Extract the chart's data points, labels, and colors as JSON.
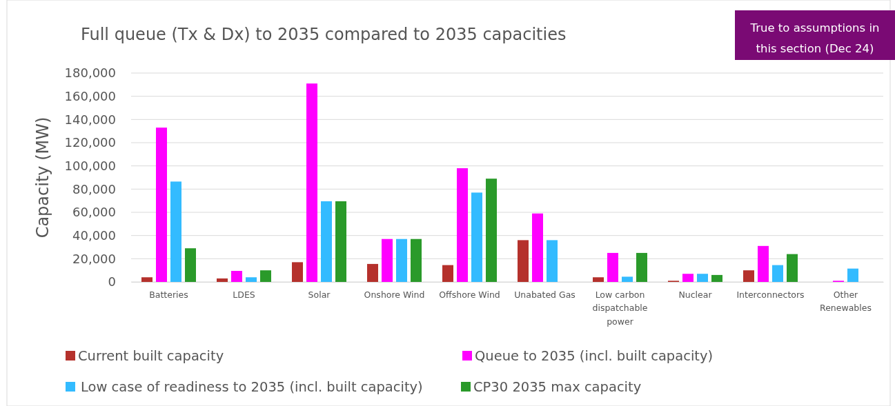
{
  "chart_data": {
    "type": "bar",
    "title": "Full queue (Tx & Dx) to 2035 compared to 2035 capacities",
    "ylabel": "Capacity (MW)",
    "annotations": [
      "True to assumptions in this section (Dec 24)"
    ],
    "categories": [
      "Batteries",
      "LDES",
      "Solar",
      "Onshore Wind",
      "Offshore Wind",
      "Unabated Gas",
      "Low carbon dispatchable power",
      "Nuclear",
      "Interconnectors",
      "Other Renewables"
    ],
    "series": [
      {
        "name": "Current built capacity",
        "color": "#b5312c",
        "values": [
          4000,
          3000,
          17000,
          15500,
          14500,
          36000,
          4000,
          1000,
          10000,
          null
        ]
      },
      {
        "name": "Queue to 2035 (incl. built capacity)",
        "color": "#ff00ff",
        "values": [
          133000,
          9500,
          171000,
          37000,
          98000,
          59000,
          25000,
          7000,
          31000,
          1000
        ]
      },
      {
        "name": "Low case of readiness to 2035 (incl. built capacity)",
        "color": "#33bbff",
        "values": [
          86500,
          4000,
          69500,
          37000,
          77000,
          36000,
          4500,
          7000,
          14500,
          11500
        ]
      },
      {
        "name": "CP30 2035 max capacity",
        "color": "#2a9a2a",
        "values": [
          29000,
          10000,
          69500,
          37000,
          89000,
          null,
          25000,
          6000,
          24000,
          null
        ]
      }
    ],
    "ylim": [
      0,
      180000
    ],
    "yticks": [
      {
        "value": 0,
        "label": "0"
      },
      {
        "value": 20000,
        "label": "20,000"
      },
      {
        "value": 40000,
        "label": "40,000"
      },
      {
        "value": 60000,
        "label": "60,000"
      },
      {
        "value": 80000,
        "label": "80,000"
      },
      {
        "value": 100000,
        "label": "100,000"
      },
      {
        "value": 120000,
        "label": "120,000"
      },
      {
        "value": 140000,
        "label": "140,000"
      },
      {
        "value": 160000,
        "label": "160,000"
      },
      {
        "value": 180000,
        "label": "180,000"
      }
    ],
    "grid": "y",
    "legend": "bottom"
  }
}
